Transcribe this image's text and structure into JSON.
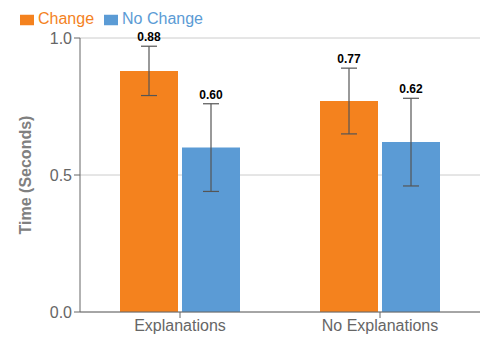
{
  "chart_data": {
    "type": "bar",
    "categories": [
      "Explanations",
      "No Explanations"
    ],
    "series": [
      {
        "name": "Change",
        "color": "#F4821E",
        "values": [
          0.88,
          0.77
        ],
        "errors": [
          0.09,
          0.12
        ],
        "value_labels": [
          "0.88",
          "0.77"
        ]
      },
      {
        "name": "No Change",
        "color": "#5B9BD5",
        "values": [
          0.6,
          0.62
        ],
        "errors": [
          0.16,
          0.16
        ],
        "value_labels": [
          "0.60",
          "0.62"
        ]
      }
    ],
    "ylabel": "Time (Seconds)",
    "ylim": [
      0.0,
      1.0
    ],
    "yticks": [
      {
        "value": 0.0,
        "label": "0.0"
      },
      0.5,
      {
        "value": 1.0,
        "label": "1.0"
      }
    ],
    "grid": true,
    "legend": "upper left",
    "data_labels": true
  }
}
